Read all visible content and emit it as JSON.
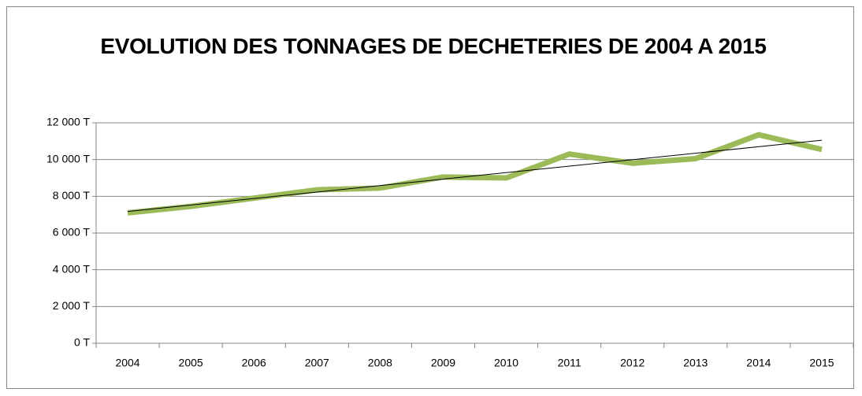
{
  "chart_data": {
    "type": "line",
    "title": "EVOLUTION DES TONNAGES DE DECHETERIES DE 2004 A 2015",
    "categories": [
      "2004",
      "2005",
      "2006",
      "2007",
      "2008",
      "2009",
      "2010",
      "2011",
      "2012",
      "2013",
      "2014",
      "2015"
    ],
    "values": [
      7100,
      7450,
      7900,
      8350,
      8450,
      9050,
      9000,
      10300,
      9800,
      10050,
      11350,
      10550
    ],
    "color": "#9bbb59",
    "trendline": true,
    "ylim": [
      0,
      12000
    ],
    "yticks": [
      {
        "value": 0,
        "label": "0 T"
      },
      {
        "value": 2000,
        "label": "2 000 T"
      },
      {
        "value": 4000,
        "label": "4 000 T"
      },
      {
        "value": 6000,
        "label": "6 000 T"
      },
      {
        "value": 8000,
        "label": "8 000 T"
      },
      {
        "value": 10000,
        "label": "10 000 T"
      },
      {
        "value": 12000,
        "label": "12 000 T"
      }
    ],
    "grid": true
  }
}
